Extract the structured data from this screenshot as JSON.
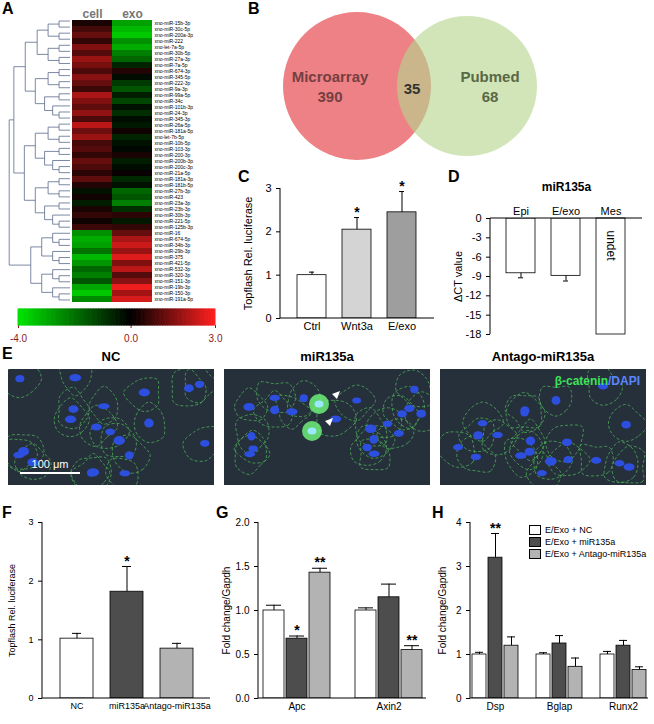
{
  "chart_data": [
    {
      "label": "A",
      "type": "heatmap",
      "columns": [
        "cell",
        "exo"
      ],
      "rows": [
        "xno-miR-15b-3p",
        "xno-miR-30c-5p",
        "xno-miR-200a-3p",
        "xno-miR-222",
        "xno-let-7a-5p",
        "xno-miR-30b-5p",
        "xno-miR-27a-3p",
        "xno-miR-7a-5p",
        "xno-miR-674-3p",
        "xno-miR-345-5p",
        "xno-miR-222-3p",
        "xno-miR-9a-3p",
        "xno-miR-99a-5p",
        "xno-miR-34c",
        "xno-miR-101b-3p",
        "xno-miR-24-3p",
        "xno-miR-345-3p",
        "xno-miR-26a-5p",
        "xno-miR-181a-5p",
        "xno-let-7b-5p",
        "xno-miR-10b-5p",
        "xno-miR-103-3p",
        "xno-miR-200-3p",
        "xno-miR-200b-3p",
        "xno-miR-200c-3p",
        "xno-miR-21a-5p",
        "xno-miR-181a-3p",
        "xno-miR-181b-5p",
        "xno-miR-27b-3p",
        "xno-miR-423",
        "xno-miR-23a-3p",
        "xno-miR-23b-3p",
        "xno-miR-30b-3p",
        "xno-miR-221-5p",
        "xno-miR-125b-3p",
        "xno-miR-16",
        "xno-miR-674-5p",
        "xno-miR-34b-3p",
        "xno-miR-29b-3p",
        "xno-miR-375",
        "xno-miR-421-5p",
        "xno-miR-532-3p",
        "xno-miR-320-3p",
        "xno-miR-151-3p",
        "xno-miR-19b-3p",
        "xno-miR-150-3p",
        "xno-miR-191a-5p"
      ],
      "cells": [
        [
          0.3,
          -2.8
        ],
        [
          0.8,
          -3.2
        ],
        [
          1.2,
          -3.5
        ],
        [
          0.6,
          -2.5
        ],
        [
          1.5,
          -3.0
        ],
        [
          1.0,
          -2.2
        ],
        [
          1.8,
          -1.8
        ],
        [
          1.4,
          -0.6
        ],
        [
          0.9,
          0.4
        ],
        [
          1.6,
          -0.2
        ],
        [
          1.2,
          -1.0
        ],
        [
          0.7,
          -1.5
        ],
        [
          2.0,
          -0.5
        ],
        [
          1.5,
          -1.2
        ],
        [
          1.1,
          -0.3
        ],
        [
          1.7,
          -0.8
        ],
        [
          0.9,
          -0.2
        ],
        [
          2.2,
          -0.4
        ],
        [
          1.3,
          0.2
        ],
        [
          1.8,
          -0.6
        ],
        [
          0.8,
          -0.3
        ],
        [
          1.0,
          -0.1
        ],
        [
          0.6,
          0.3
        ],
        [
          1.2,
          -0.5
        ],
        [
          0.9,
          -0.2
        ],
        [
          0.5,
          0.1
        ],
        [
          1.1,
          -0.7
        ],
        [
          0.4,
          -0.3
        ],
        [
          -0.3,
          -1.8
        ],
        [
          0.2,
          -1.5
        ],
        [
          -0.5,
          -2.2
        ],
        [
          0.3,
          -0.8
        ],
        [
          0.6,
          0.5
        ],
        [
          0.2,
          -0.4
        ],
        [
          0.7,
          0.6
        ],
        [
          -2.5,
          1.2
        ],
        [
          -3.0,
          2.0
        ],
        [
          -2.8,
          2.4
        ],
        [
          -2.0,
          1.8
        ],
        [
          -3.2,
          2.6
        ],
        [
          -2.6,
          1.5
        ],
        [
          -1.8,
          2.2
        ],
        [
          -2.2,
          1.0
        ],
        [
          -1.5,
          1.6
        ],
        [
          -2.9,
          2.8
        ],
        [
          -3.5,
          1.9
        ],
        [
          -2.4,
          2.5
        ]
      ],
      "colorbar": {
        "range": [
          -4,
          3
        ],
        "ticks": [
          {
            "value": -4,
            "label": "-4.0"
          },
          {
            "value": 0,
            "label": "0.0"
          },
          {
            "value": 3,
            "label": "3.0"
          }
        ],
        "stops": [
          -4,
          0,
          3
        ],
        "colors": [
          "#00e600",
          "#000000",
          "#ff2020"
        ]
      }
    },
    {
      "label": "B",
      "type": "venn",
      "sets": [
        {
          "name": "Microarray",
          "value": 390,
          "color": "#ee8186"
        },
        {
          "name": "Pubmed",
          "value": 68,
          "color": "#b5d58d"
        }
      ],
      "intersection": 35
    },
    {
      "label": "C",
      "type": "bar",
      "categories": [
        "Ctrl",
        "Wnt3a",
        "E/exo"
      ],
      "values": [
        1.0,
        2.05,
        2.45
      ],
      "errors": [
        0.07,
        0.28,
        0.48
      ],
      "significance": [
        null,
        "*",
        "*"
      ],
      "colors": [
        "#ffffff",
        "#d4d4d4",
        "#9e9e9e"
      ],
      "ylabel": "Topflash Rel. luciferase",
      "ylim": [
        0,
        3
      ],
      "yticks": [
        0,
        1,
        2,
        3
      ]
    },
    {
      "label": "D",
      "type": "bar",
      "title": "miR135a",
      "categories": [
        "Epi",
        "E/exo",
        "Mes"
      ],
      "values": [
        -8.5,
        -8.9,
        null
      ],
      "errors": [
        0.7,
        0.8,
        null
      ],
      "annotations": [
        {
          "category": "Mes",
          "text": "undet"
        }
      ],
      "colors": [
        "#ffffff",
        "#ffffff",
        "#ffffff"
      ],
      "ylabel": "ΔCT value",
      "ylim": [
        -18,
        0
      ],
      "yticks": [
        0,
        -3,
        -6,
        -9,
        -12,
        -15,
        -18
      ]
    },
    {
      "label": "E",
      "type": "image",
      "panels": [
        "NC",
        "miR135a",
        "Antago-miR135a"
      ],
      "stain_label": "β-catenin/DAPI",
      "scale_bar": "100 μm"
    },
    {
      "label": "F",
      "type": "bar",
      "categories": [
        "NC",
        "miR135a",
        "Antago-miR135a"
      ],
      "values": [
        1.02,
        1.82,
        0.85
      ],
      "errors": [
        0.09,
        0.43,
        0.09
      ],
      "significance": [
        null,
        "*",
        null
      ],
      "colors": [
        "#ffffff",
        "#4d4d4d",
        "#b3b3b3"
      ],
      "ylabel": "Topflash Rel. luciferase",
      "ylim": [
        0,
        3
      ],
      "yticks": [
        0,
        1,
        2,
        3
      ]
    },
    {
      "label": "G",
      "type": "bar",
      "categories": [
        "Apc",
        "Axin2"
      ],
      "series": [
        {
          "name": "E/Exo + NC",
          "color": "#ffffff",
          "values": [
            1.0,
            1.0
          ],
          "errors": [
            0.06,
            0.03
          ],
          "significance": [
            null,
            null
          ]
        },
        {
          "name": "E/Exo + miR135a",
          "color": "#4d4d4d",
          "values": [
            0.68,
            1.15
          ],
          "errors": [
            0.03,
            0.15
          ],
          "significance": [
            "*",
            null
          ]
        },
        {
          "name": "E/Exo + Antago-miR135a",
          "color": "#b3b3b3",
          "values": [
            1.43,
            0.55
          ],
          "errors": [
            0.05,
            0.05
          ],
          "significance": [
            "**",
            "**"
          ]
        }
      ],
      "ylabel": "Fold change/Gapdh",
      "ylim": [
        0,
        2
      ],
      "yticks": [
        {
          "value": 0,
          "label": "0.0"
        },
        {
          "value": 0.5,
          "label": "0.5"
        },
        {
          "value": 1,
          "label": "1.0"
        },
        {
          "value": 1.5,
          "label": "1.5"
        },
        {
          "value": 2,
          "label": "2.0"
        }
      ]
    },
    {
      "label": "H",
      "type": "bar",
      "categories": [
        "Dsp",
        "Bglap",
        "Runx2"
      ],
      "series": [
        {
          "name": "E/Exo + NC",
          "color": "#ffffff",
          "values": [
            1.0,
            1.0,
            1.0
          ],
          "errors": [
            0.05,
            0.04,
            0.07
          ],
          "significance": [
            null,
            null,
            null
          ]
        },
        {
          "name": "E/Exo + miR135a",
          "color": "#4d4d4d",
          "values": [
            3.2,
            1.25,
            1.2
          ],
          "errors": [
            0.55,
            0.18,
            0.12
          ],
          "significance": [
            "**",
            null,
            null
          ]
        },
        {
          "name": "E/Exo + Antago-miR135a",
          "color": "#b3b3b3",
          "values": [
            1.2,
            0.72,
            0.65
          ],
          "errors": [
            0.2,
            0.2,
            0.07
          ],
          "significance": [
            null,
            null,
            null
          ]
        }
      ],
      "ylabel": "Fold change/Gapdh",
      "ylim": [
        0,
        4
      ],
      "yticks": [
        0,
        1,
        2,
        3,
        4
      ],
      "legend": "top-right"
    }
  ]
}
